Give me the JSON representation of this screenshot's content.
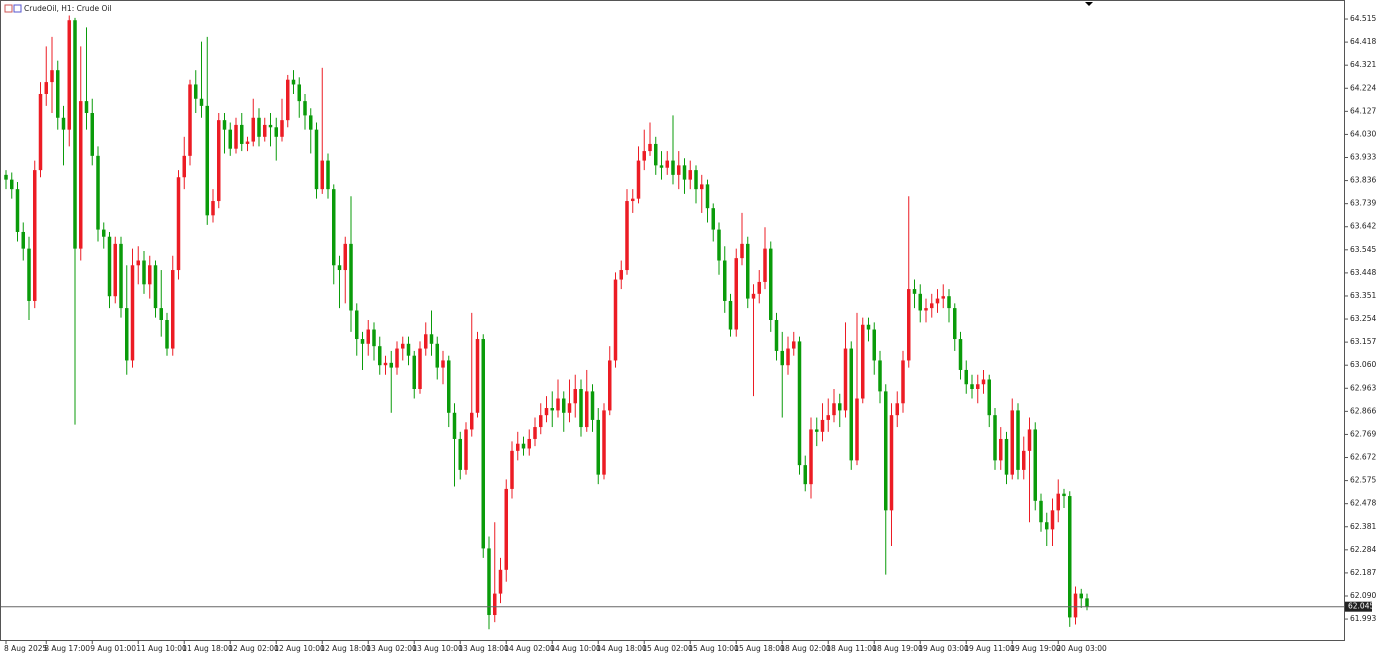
{
  "chart_data": {
    "type": "candlestick",
    "title": "CrudeOil, H1:  Crude Oil",
    "up_color": "#ec1c24",
    "down_color": "#0a9b0a",
    "last_price": 62.045,
    "ylim": [
      61.905,
      64.595
    ],
    "yticks": [
      64.515,
      64.418,
      64.321,
      64.224,
      64.127,
      {
        "value": 64.03,
        "label": "64.030"
      },
      63.933,
      63.836,
      63.739,
      63.642,
      63.545,
      63.448,
      63.351,
      63.254,
      63.157,
      {
        "value": 63.06,
        "label": "63.060"
      },
      62.963,
      62.866,
      62.769,
      62.672,
      62.575,
      62.478,
      62.381,
      62.284,
      62.187,
      {
        "value": 62.09,
        "label": "62.090"
      },
      61.993
    ],
    "categories": [
      "8 Aug 2025",
      null,
      null,
      null,
      null,
      null,
      null,
      "8 Aug 17:00",
      null,
      null,
      null,
      null,
      null,
      null,
      null,
      "9 Aug 01:00",
      null,
      null,
      null,
      null,
      null,
      null,
      null,
      "11 Aug 10:00",
      null,
      null,
      null,
      null,
      null,
      null,
      null,
      "11 Aug 18:00",
      null,
      null,
      null,
      null,
      null,
      null,
      null,
      "12 Aug 02:00",
      null,
      null,
      null,
      null,
      null,
      null,
      null,
      "12 Aug 10:00",
      null,
      null,
      null,
      null,
      null,
      null,
      null,
      "12 Aug 18:00",
      null,
      null,
      null,
      null,
      null,
      null,
      null,
      "13 Aug 02:00",
      null,
      null,
      null,
      null,
      null,
      null,
      null,
      "13 Aug 10:00",
      null,
      null,
      null,
      null,
      null,
      null,
      null,
      "13 Aug 18:00",
      null,
      null,
      null,
      null,
      null,
      null,
      null,
      "14 Aug 02:00",
      null,
      null,
      null,
      null,
      null,
      null,
      null,
      "14 Aug 10:00",
      null,
      null,
      null,
      null,
      null,
      null,
      null,
      "14 Aug 18:00",
      null,
      null,
      null,
      null,
      null,
      null,
      null,
      "15 Aug 02:00",
      null,
      null,
      null,
      null,
      null,
      null,
      null,
      "15 Aug 10:00",
      null,
      null,
      null,
      null,
      null,
      null,
      null,
      "15 Aug 18:00",
      null,
      null,
      null,
      null,
      null,
      null,
      null,
      "18 Aug 02:00",
      null,
      null,
      null,
      null,
      null,
      null,
      null,
      "18 Aug 11:00",
      null,
      null,
      null,
      null,
      null,
      null,
      null,
      "18 Aug 19:00",
      null,
      null,
      null,
      null,
      null,
      null,
      null,
      "19 Aug 03:00",
      null,
      null,
      null,
      null,
      null,
      null,
      null,
      "19 Aug 11:00",
      null,
      null,
      null,
      null,
      null,
      null,
      null,
      "19 Aug 19:00",
      null,
      null,
      null,
      null,
      null,
      null,
      null,
      "20 Aug 03:00",
      null,
      null,
      null,
      null,
      null
    ],
    "open": [
      63.86,
      63.84,
      63.8,
      63.62,
      63.55,
      63.33,
      63.88,
      64.2,
      64.25,
      64.3,
      64.1,
      64.05,
      64.51,
      63.55,
      64.17,
      64.12,
      63.94,
      63.63,
      63.6,
      63.35,
      63.57,
      63.3,
      63.08,
      63.48,
      63.5,
      63.4,
      63.48,
      63.3,
      63.25,
      63.13,
      63.46,
      63.85,
      63.94,
      64.24,
      64.18,
      64.15,
      63.69,
      63.75,
      64.09,
      64.05,
      63.97,
      64.07,
      63.99,
      64.0,
      64.1,
      64.02,
      64.07,
      64.06,
      64.02,
      64.09,
      64.26,
      64.24,
      64.17,
      64.11,
      64.05,
      63.8,
      63.92,
      63.8,
      63.48,
      63.46,
      63.57,
      63.29,
      63.17,
      63.15,
      63.21,
      63.14,
      63.06,
      63.07,
      63.05,
      63.13,
      63.15,
      63.1,
      62.96,
      63.13,
      63.19,
      63.15,
      63.05,
      63.08,
      62.86,
      62.75,
      62.62,
      62.79,
      62.86,
      63.17,
      62.29,
      62.01,
      62.1,
      62.2,
      62.54,
      62.7,
      62.73,
      62.71,
      62.75,
      62.8,
      62.85,
      62.88,
      62.87,
      62.92,
      62.86,
      62.9,
      62.96,
      62.8,
      62.95,
      62.83,
      62.6,
      62.87,
      63.08,
      63.42,
      63.46,
      63.75,
      63.76,
      63.92,
      63.96,
      63.99,
      63.9,
      63.89,
      63.92,
      63.86,
      63.9,
      63.84,
      63.88,
      63.8,
      63.82,
      63.72,
      63.63,
      63.5,
      63.33,
      63.21,
      63.51,
      63.57,
      63.34,
      63.36,
      63.41,
      63.55,
      63.25,
      63.12,
      63.06,
      63.13,
      63.16,
      62.64,
      62.56,
      62.79,
      62.78,
      62.83,
      62.85,
      62.9,
      62.87,
      63.13,
      62.66,
      62.92,
      63.23,
      63.21,
      63.08,
      62.95,
      62.45,
      62.85,
      62.9,
      63.08,
      63.38,
      63.36,
      63.29,
      63.3,
      63.32,
      63.34,
      63.35,
      63.3,
      63.17,
      63.04,
      62.98,
      62.96,
      62.98,
      63.0,
      62.85,
      62.66,
      62.75,
      62.6,
      62.87,
      62.62,
      62.7,
      62.79,
      62.49,
      62.4,
      62.37,
      62.45,
      62.52,
      62.51,
      62.0,
      62.1,
      62.08
    ],
    "high": [
      63.88,
      63.87,
      63.83,
      63.66,
      63.6,
      63.92,
      64.25,
      64.4,
      64.44,
      64.34,
      64.15,
      64.53,
      64.52,
      64.4,
      64.48,
      64.18,
      63.98,
      63.66,
      63.62,
      63.6,
      63.6,
      63.48,
      63.55,
      63.56,
      63.54,
      63.52,
      63.5,
      63.46,
      63.28,
      63.52,
      63.88,
      64.02,
      64.26,
      64.3,
      64.42,
      64.44,
      63.8,
      64.12,
      64.12,
      64.08,
      64.1,
      64.12,
      64.02,
      64.18,
      64.14,
      64.1,
      64.12,
      64.1,
      64.18,
      64.28,
      64.3,
      64.27,
      64.2,
      64.14,
      64.08,
      64.31,
      63.95,
      63.82,
      63.52,
      63.6,
      63.77,
      63.32,
      63.2,
      63.25,
      63.24,
      63.18,
      63.1,
      63.12,
      63.16,
      63.18,
      63.18,
      63.12,
      63.16,
      63.24,
      63.29,
      63.18,
      63.12,
      63.1,
      62.9,
      62.78,
      62.82,
      63.28,
      63.2,
      63.19,
      62.34,
      62.4,
      62.25,
      62.58,
      62.74,
      62.78,
      62.76,
      62.79,
      62.84,
      62.9,
      62.93,
      62.95,
      63.0,
      62.95,
      63.0,
      63.02,
      63.0,
      63.04,
      62.98,
      62.88,
      62.9,
      63.14,
      63.45,
      63.5,
      63.8,
      63.8,
      63.98,
      64.05,
      64.08,
      64.02,
      63.96,
      63.96,
      64.11,
      63.96,
      63.93,
      63.92,
      63.9,
      63.86,
      63.84,
      63.74,
      63.66,
      63.56,
      63.36,
      63.55,
      63.7,
      63.6,
      63.4,
      63.46,
      63.64,
      63.58,
      63.28,
      63.2,
      63.18,
      63.2,
      63.18,
      62.68,
      62.84,
      62.84,
      62.9,
      62.92,
      62.96,
      62.94,
      63.24,
      63.16,
      63.28,
      63.26,
      63.26,
      63.24,
      63.12,
      62.98,
      62.9,
      62.95,
      63.12,
      63.77,
      63.42,
      63.4,
      63.34,
      63.36,
      63.38,
      63.4,
      63.38,
      63.32,
      63.2,
      63.08,
      63.02,
      63.02,
      63.04,
      63.02,
      62.88,
      62.8,
      62.78,
      62.92,
      62.9,
      62.76,
      62.84,
      62.82,
      62.52,
      62.44,
      62.5,
      62.58,
      62.54,
      62.53,
      62.13,
      62.12,
      62.1
    ],
    "low": [
      63.8,
      63.76,
      63.58,
      63.5,
      63.25,
      63.3,
      63.85,
      64.15,
      64.12,
      64.05,
      63.9,
      63.98,
      62.81,
      63.5,
      64.05,
      63.9,
      63.58,
      63.55,
      63.3,
      63.32,
      63.26,
      63.02,
      63.05,
      63.4,
      63.36,
      63.34,
      63.26,
      63.18,
      63.1,
      63.1,
      63.42,
      63.8,
      63.9,
      64.12,
      64.1,
      63.65,
      63.66,
      63.72,
      63.95,
      63.94,
      63.95,
      63.96,
      63.96,
      63.98,
      63.98,
      64.0,
      63.98,
      63.92,
      64.0,
      64.06,
      64.2,
      64.1,
      64.05,
      63.95,
      63.76,
      63.78,
      63.76,
      63.4,
      63.3,
      63.32,
      63.2,
      63.1,
      63.04,
      63.1,
      63.08,
      63.02,
      63.02,
      62.86,
      63.02,
      63.08,
      63.06,
      62.92,
      62.94,
      63.1,
      63.1,
      63.0,
      62.98,
      62.8,
      62.55,
      62.58,
      62.6,
      62.76,
      62.84,
      62.25,
      61.95,
      61.98,
      62.06,
      62.15,
      62.5,
      62.66,
      62.68,
      62.68,
      62.72,
      62.77,
      62.82,
      62.8,
      62.84,
      62.78,
      62.82,
      62.84,
      62.76,
      62.78,
      62.78,
      62.56,
      62.58,
      62.85,
      63.05,
      63.38,
      63.44,
      63.7,
      63.74,
      63.88,
      63.94,
      63.86,
      63.84,
      63.86,
      63.82,
      63.8,
      63.78,
      63.8,
      63.74,
      63.7,
      63.66,
      63.58,
      63.44,
      63.28,
      63.18,
      63.18,
      63.48,
      63.3,
      62.93,
      63.32,
      63.38,
      63.2,
      63.08,
      62.84,
      63.02,
      63.1,
      62.6,
      62.53,
      62.5,
      62.72,
      62.74,
      62.78,
      62.82,
      62.8,
      62.84,
      62.62,
      62.64,
      62.9,
      63.16,
      63.02,
      62.9,
      62.18,
      62.3,
      62.8,
      62.86,
      63.05,
      63.3,
      63.24,
      63.24,
      63.26,
      63.28,
      63.3,
      63.24,
      63.12,
      63.0,
      62.94,
      62.92,
      62.9,
      62.94,
      62.8,
      62.62,
      62.62,
      62.56,
      62.58,
      62.58,
      62.58,
      62.4,
      62.45,
      62.36,
      62.3,
      62.3,
      62.4,
      62.46,
      61.96,
      61.97,
      62.04,
      62.03
    ],
    "close": [
      63.84,
      63.8,
      63.62,
      63.55,
      63.33,
      63.88,
      64.2,
      64.25,
      64.3,
      64.1,
      64.05,
      64.51,
      63.55,
      64.17,
      64.12,
      63.94,
      63.63,
      63.6,
      63.35,
      63.57,
      63.3,
      63.08,
      63.48,
      63.5,
      63.4,
      63.48,
      63.3,
      63.25,
      63.13,
      63.46,
      63.85,
      63.94,
      64.24,
      64.18,
      64.15,
      63.69,
      63.75,
      64.09,
      64.05,
      63.97,
      64.07,
      63.99,
      64.0,
      64.1,
      64.02,
      64.07,
      64.06,
      64.02,
      64.09,
      64.26,
      64.24,
      64.17,
      64.11,
      64.05,
      63.8,
      63.92,
      63.8,
      63.48,
      63.46,
      63.57,
      63.29,
      63.17,
      63.15,
      63.21,
      63.14,
      63.06,
      63.07,
      63.05,
      63.13,
      63.15,
      63.1,
      62.96,
      63.13,
      63.19,
      63.15,
      63.05,
      63.08,
      62.86,
      62.75,
      62.62,
      62.79,
      62.86,
      63.17,
      62.29,
      62.01,
      62.1,
      62.2,
      62.54,
      62.7,
      62.73,
      62.71,
      62.75,
      62.8,
      62.85,
      62.88,
      62.87,
      62.92,
      62.86,
      62.9,
      62.96,
      62.8,
      62.95,
      62.83,
      62.6,
      62.87,
      63.08,
      63.42,
      63.46,
      63.75,
      63.76,
      63.92,
      63.96,
      63.99,
      63.9,
      63.89,
      63.92,
      63.86,
      63.9,
      63.84,
      63.88,
      63.8,
      63.82,
      63.72,
      63.63,
      63.5,
      63.33,
      63.21,
      63.51,
      63.57,
      63.34,
      63.36,
      63.41,
      63.55,
      63.25,
      63.12,
      63.06,
      63.13,
      63.16,
      62.64,
      62.56,
      62.79,
      62.78,
      62.83,
      62.85,
      62.9,
      62.87,
      63.13,
      62.66,
      62.92,
      63.23,
      63.21,
      63.08,
      62.95,
      62.45,
      62.85,
      62.9,
      63.08,
      63.38,
      63.36,
      63.29,
      63.3,
      63.32,
      63.34,
      63.35,
      63.3,
      63.17,
      63.04,
      62.98,
      62.96,
      62.98,
      63.0,
      62.85,
      62.66,
      62.75,
      62.6,
      62.87,
      62.62,
      62.7,
      62.79,
      62.49,
      62.4,
      62.37,
      62.45,
      62.52,
      62.51,
      62.0,
      62.1,
      62.08,
      62.045
    ]
  }
}
